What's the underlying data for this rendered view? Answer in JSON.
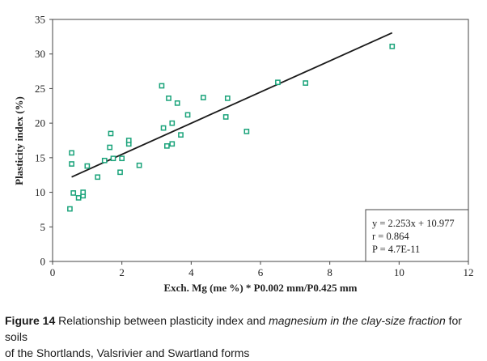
{
  "chart_data": {
    "type": "scatter",
    "xlabel": "Exch. Mg (me %) * P0.002 mm/P0.425 mm",
    "ylabel": "Plasticity index (%)",
    "xlim": [
      0,
      12
    ],
    "ylim": [
      0,
      35
    ],
    "xticks": [
      "0",
      "2",
      "4",
      "6",
      "8",
      "10",
      "12"
    ],
    "yticks": [
      "0",
      "5",
      "10",
      "15",
      "20",
      "25",
      "30",
      "35"
    ],
    "grid": false,
    "marker_color": "#1aa37a",
    "trendline": {
      "slope": 2.253,
      "intercept": 10.977,
      "x_range": [
        0.55,
        9.8
      ]
    },
    "annotation": [
      "y = 2.253x + 10.977",
      "r = 0.864",
      "P = 4.7E-11"
    ],
    "series": [
      {
        "points": [
          [
            0.55,
            15.7
          ],
          [
            0.55,
            14.1
          ],
          [
            0.5,
            7.6
          ],
          [
            0.6,
            9.9
          ],
          [
            0.75,
            9.2
          ],
          [
            0.88,
            9.5
          ],
          [
            0.88,
            10.0
          ],
          [
            1.0,
            13.8
          ],
          [
            1.3,
            12.2
          ],
          [
            1.5,
            14.6
          ],
          [
            1.65,
            16.5
          ],
          [
            1.68,
            18.5
          ],
          [
            1.75,
            14.9
          ],
          [
            1.95,
            12.9
          ],
          [
            2.0,
            14.9
          ],
          [
            2.2,
            17.0
          ],
          [
            2.2,
            17.5
          ],
          [
            2.5,
            13.9
          ],
          [
            3.15,
            25.4
          ],
          [
            3.2,
            19.3
          ],
          [
            3.3,
            16.7
          ],
          [
            3.35,
            23.6
          ],
          [
            3.45,
            17.0
          ],
          [
            3.45,
            20.0
          ],
          [
            3.6,
            22.9
          ],
          [
            3.7,
            18.3
          ],
          [
            3.9,
            21.2
          ],
          [
            4.35,
            23.7
          ],
          [
            5.0,
            20.9
          ],
          [
            5.05,
            23.6
          ],
          [
            5.6,
            18.8
          ],
          [
            6.5,
            25.9
          ],
          [
            7.3,
            25.8
          ],
          [
            9.8,
            31.1
          ]
        ]
      }
    ]
  },
  "caption": {
    "label": "Figure 14",
    "text_before": " Relationship between plasticity index and ",
    "text_italic": "magnesium in the clay-size fraction",
    "text_after": " for soils",
    "line2": "of the Shortlands, Valsrivier and Swartland forms"
  }
}
